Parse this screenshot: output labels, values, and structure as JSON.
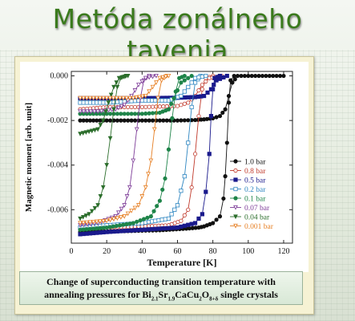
{
  "slide": {
    "title": "Metóda zonálneho tavenia",
    "caption_line1": "Change of superconducting transition temperature with",
    "caption_line2_prefix": "annealing pressures for Bi",
    "caption_sub1": "2.1",
    "caption_mid1": "Sr",
    "caption_sub2": "1.9",
    "caption_mid2": "CaCu",
    "caption_sub3": "2",
    "caption_mid3": "O",
    "caption_sub4": "8+δ",
    "caption_suffix": " single crystals"
  },
  "chart_data": {
    "type": "line",
    "xlabel": "Temperature [K]",
    "ylabel": "Magnetic moment [arb. unit]",
    "xlim": [
      0,
      125
    ],
    "ylim": [
      -0.0075,
      0.0002
    ],
    "xticks": [
      0,
      20,
      40,
      60,
      80,
      100,
      120
    ],
    "yticks": [
      0.0,
      -0.002,
      -0.004,
      -0.006
    ],
    "ytick_labels": [
      "0.000",
      "-0.002",
      "-0.004",
      "-0.006"
    ],
    "legend_position": "right",
    "series": [
      {
        "name": "1.0 bar",
        "color": "#111111",
        "marker": "filled-circle",
        "fc_x": [
          5,
          15,
          30,
          50,
          65,
          72,
          75,
          80,
          84,
          86,
          87,
          88,
          89,
          90,
          92
        ],
        "fc_y": [
          -0.007,
          -0.00698,
          -0.00696,
          -0.00692,
          -0.00685,
          -0.0068,
          -0.00675,
          -0.0066,
          -0.0063,
          -0.0055,
          -0.0045,
          -0.003,
          -0.0012,
          -0.0002,
          0
        ],
        "zfc_x": [
          5,
          20,
          40,
          60,
          70,
          75,
          80,
          84,
          87,
          89,
          91,
          94,
          110,
          120
        ],
        "zfc_y": [
          -0.002,
          -0.002,
          -0.002,
          -0.002,
          -0.00198,
          -0.00195,
          -0.0019,
          -0.0018,
          -0.0015,
          -0.0009,
          -0.0003,
          0,
          0,
          0
        ]
      },
      {
        "name": "0.8 bar",
        "color": "#c0392b",
        "marker": "open-circle",
        "fc_x": [
          5,
          20,
          40,
          55,
          62,
          66,
          68,
          70,
          72,
          74,
          76,
          80
        ],
        "fc_y": [
          -0.00685,
          -0.0068,
          -0.00675,
          -0.0067,
          -0.0065,
          -0.006,
          -0.005,
          -0.0035,
          -0.0018,
          -0.0006,
          -0.0001,
          0
        ],
        "zfc_x": [
          5,
          20,
          40,
          60,
          66,
          70,
          74,
          78,
          85
        ],
        "zfc_y": [
          -0.0015,
          -0.0014,
          -0.0014,
          -0.00135,
          -0.0012,
          -0.0009,
          -0.0004,
          -0.0001,
          0
        ]
      },
      {
        "name": "0.5 bar",
        "color": "#1a1a8c",
        "marker": "filled-square",
        "fc_x": [
          5,
          20,
          40,
          60,
          70,
          74,
          76,
          78,
          79,
          80,
          81,
          84
        ],
        "fc_y": [
          -0.0071,
          -0.007,
          -0.0069,
          -0.0068,
          -0.0066,
          -0.0062,
          -0.0052,
          -0.0035,
          -0.0018,
          -0.0006,
          -0.0001,
          0
        ],
        "zfc_x": [
          5,
          20,
          40,
          60,
          70,
          75,
          79,
          82,
          88
        ],
        "zfc_y": [
          -0.001,
          -0.001,
          -0.001,
          -0.00098,
          -0.00095,
          -0.0009,
          -0.0006,
          -0.0002,
          0
        ]
      },
      {
        "name": "0.2 bar",
        "color": "#2e86c1",
        "marker": "open-square",
        "fc_x": [
          5,
          20,
          40,
          55,
          60,
          64,
          66,
          68,
          70,
          73
        ],
        "fc_y": [
          -0.0068,
          -0.0067,
          -0.0066,
          -0.0064,
          -0.0058,
          -0.0045,
          -0.003,
          -0.0014,
          -0.0003,
          0
        ],
        "zfc_x": [
          5,
          20,
          40,
          55,
          62,
          66,
          70,
          76
        ],
        "zfc_y": [
          -0.0012,
          -0.0012,
          -0.0011,
          -0.0011,
          -0.0009,
          -0.0005,
          -0.0001,
          0
        ]
      },
      {
        "name": "0.1 bar",
        "color": "#1e8449",
        "marker": "filled-circle",
        "fc_x": [
          5,
          20,
          35,
          45,
          50,
          53,
          55,
          57,
          59,
          61,
          64
        ],
        "fc_y": [
          -0.0069,
          -0.0068,
          -0.0066,
          -0.0063,
          -0.0056,
          -0.0046,
          -0.0033,
          -0.0019,
          -0.0007,
          -0.0001,
          0
        ],
        "zfc_x": [
          5,
          20,
          40,
          50,
          55,
          58,
          62,
          68
        ],
        "zfc_y": [
          -0.0017,
          -0.0017,
          -0.0017,
          -0.00165,
          -0.0015,
          -0.001,
          -0.0003,
          0
        ]
      },
      {
        "name": "0.07 bar",
        "color": "#7d3c98",
        "marker": "open-triangle-down",
        "fc_x": [
          5,
          15,
          25,
          30,
          33,
          35,
          37,
          39,
          41,
          44
        ],
        "fc_y": [
          -0.0067,
          -0.0066,
          -0.0063,
          -0.0058,
          -0.005,
          -0.0038,
          -0.0024,
          -0.001,
          -0.0002,
          0
        ],
        "zfc_x": [
          5,
          15,
          25,
          30,
          34,
          38,
          42,
          48
        ],
        "zfc_y": [
          -0.0016,
          -0.0016,
          -0.0015,
          -0.0013,
          -0.0009,
          -0.0004,
          -0.0001,
          0
        ]
      },
      {
        "name": "0.04 bar",
        "color": "#2c6e2c",
        "marker": "filled-triangle-down",
        "fc_x": [
          5,
          10,
          15,
          18,
          20,
          22,
          24,
          26,
          28,
          31
        ],
        "fc_y": [
          -0.0064,
          -0.0062,
          -0.0058,
          -0.005,
          -0.004,
          -0.0028,
          -0.0015,
          -0.0005,
          -0.0001,
          0
        ],
        "zfc_x": [
          5,
          10,
          15,
          18,
          21,
          24,
          27,
          32
        ],
        "zfc_y": [
          -0.0026,
          -0.0025,
          -0.0024,
          -0.002,
          -0.0012,
          -0.0005,
          -0.0001,
          0
        ]
      },
      {
        "name": "0.001 bar",
        "color": "#e67e22",
        "marker": "open-triangle-down",
        "fc_x": [
          5,
          20,
          30,
          38,
          42,
          45,
          47,
          49,
          51,
          54
        ],
        "fc_y": [
          -0.0066,
          -0.0065,
          -0.0063,
          -0.0058,
          -0.005,
          -0.0038,
          -0.0024,
          -0.001,
          -0.0002,
          0
        ],
        "zfc_x": [
          5,
          20,
          35,
          42,
          46,
          50,
          55
        ],
        "zfc_y": [
          -0.001,
          -0.001,
          -0.001,
          -0.0009,
          -0.0005,
          -0.0001,
          0
        ]
      }
    ]
  }
}
